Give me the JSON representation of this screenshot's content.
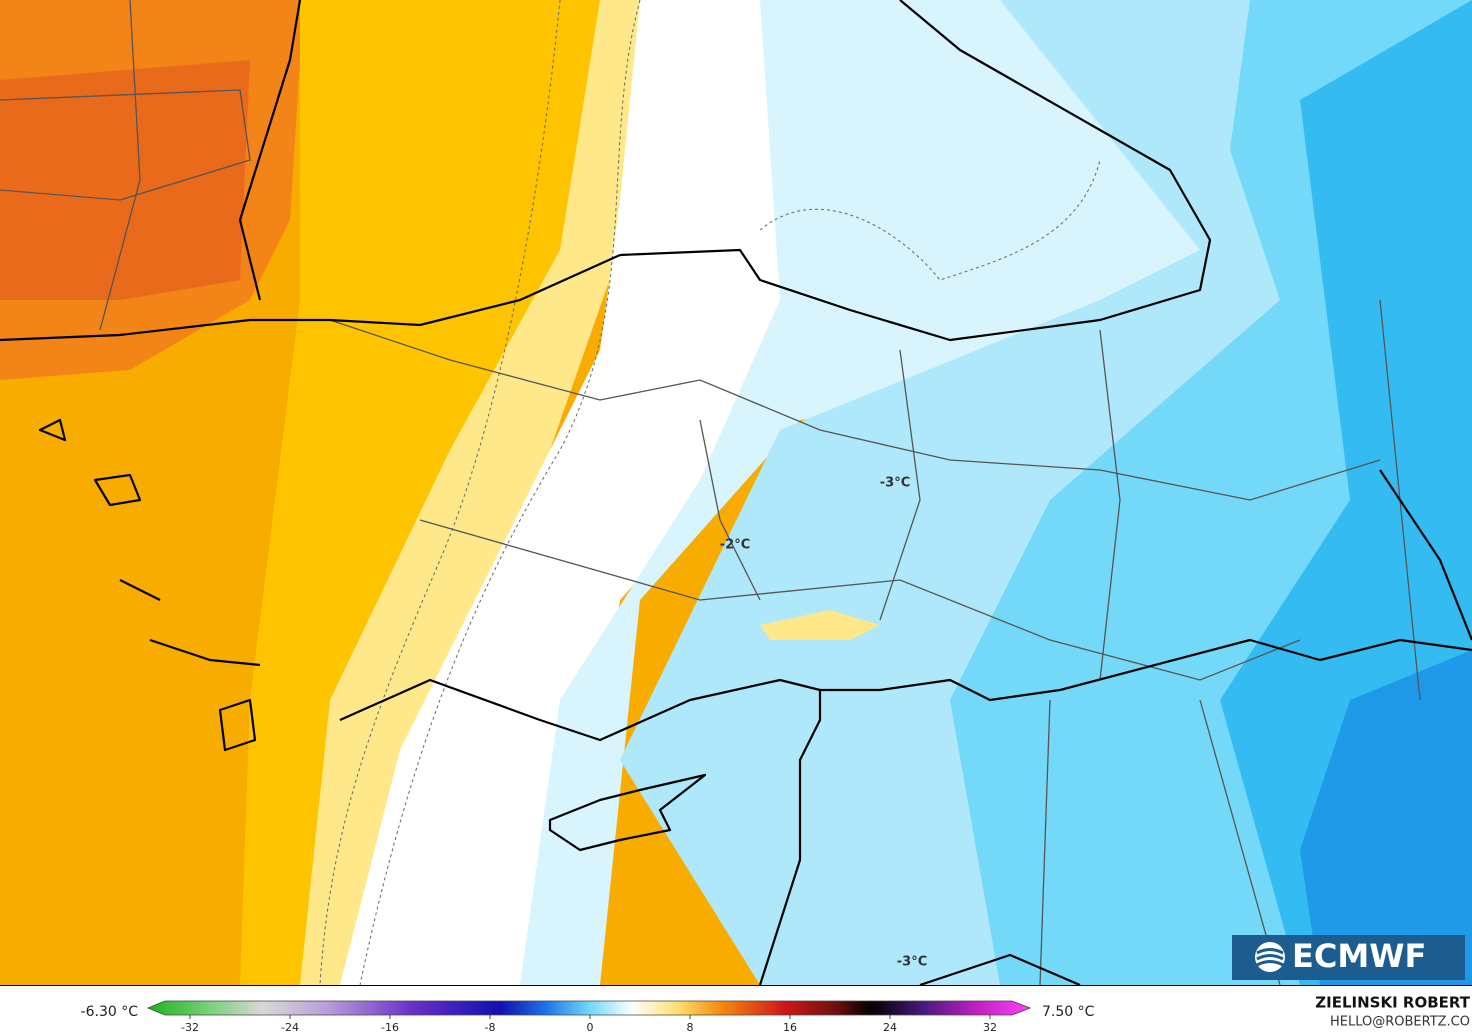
{
  "map": {
    "labels": [
      "-3°C",
      "-2°C",
      "-3°C"
    ]
  },
  "logo": {
    "text": "ECMWF"
  },
  "credits": {
    "author": "ZIELINSKI ROBERT",
    "contact": "HELLO@ROBERTZ.CO"
  },
  "colorbar": {
    "min_label": "-6.30 °C",
    "max_label": "7.50 °C",
    "ticks": [
      -32,
      -24,
      -16,
      -8,
      0,
      8,
      16,
      24,
      32
    ]
  }
}
